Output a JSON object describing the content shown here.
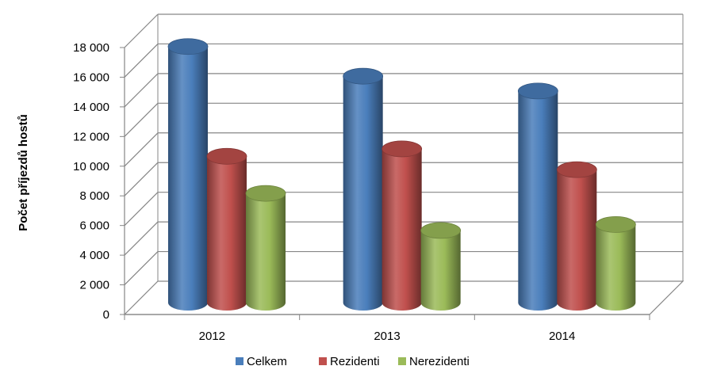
{
  "chart_data": {
    "type": "bar",
    "ylabel": "Počet příjezdů hostů",
    "xlabel": "",
    "categories": [
      "2012",
      "2013",
      "2014"
    ],
    "ylim": [
      0,
      18000
    ],
    "y_ticks": [
      0,
      2000,
      4000,
      6000,
      8000,
      10000,
      12000,
      14000,
      16000,
      18000
    ],
    "y_tick_labels": [
      "0",
      "2 000",
      "4 000",
      "6 000",
      "8 000",
      "10 000",
      "12 000",
      "14 000",
      "16 000",
      "18 000"
    ],
    "grid": true,
    "legend_position": "bottom",
    "series": [
      {
        "name": "Celkem",
        "values": [
          17800,
          15800,
          14800
        ],
        "color": "#4A7EBB"
      },
      {
        "name": "Rezidenti",
        "values": [
          10400,
          10900,
          9500
        ],
        "color": "#C0504D"
      },
      {
        "name": "Nerezidenti",
        "values": [
          7900,
          5400,
          5800
        ],
        "color": "#9BBB59"
      }
    ]
  }
}
